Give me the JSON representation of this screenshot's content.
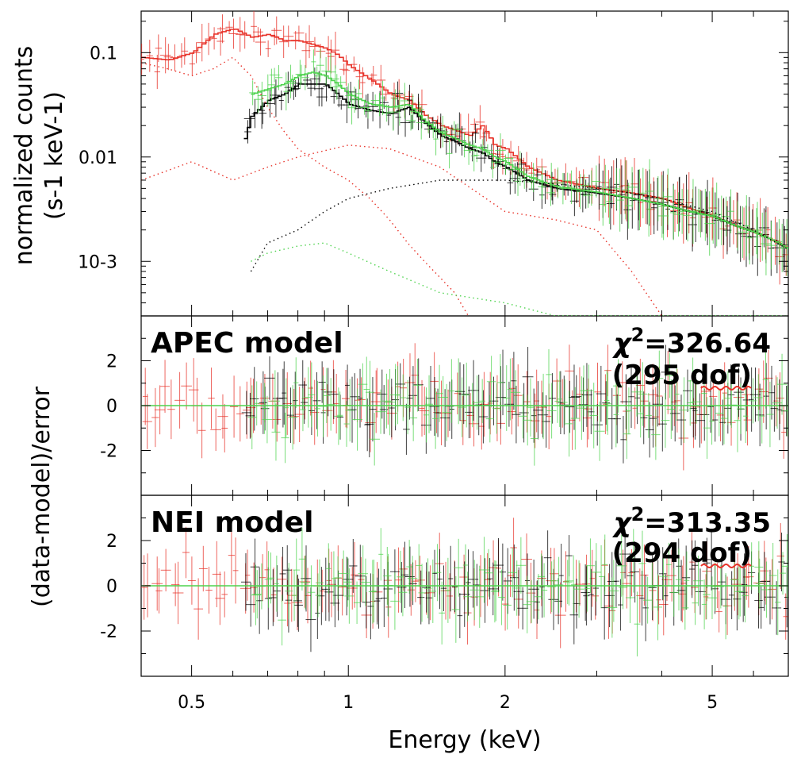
{
  "chart_data": [
    {
      "type": "line",
      "panel": "spectrum",
      "ylabel_line1": "normalized counts",
      "ylabel_line2": "(s-1 keV-1)",
      "xlabel": "",
      "xscale": "log",
      "yscale": "log",
      "xlim": [
        0.4,
        7.0
      ],
      "ylim": [
        0.0003,
        0.25
      ],
      "yticks": [
        {
          "value": 0.1,
          "label": "0.1"
        },
        {
          "value": 0.01,
          "label": "0.01"
        },
        {
          "value": 0.001,
          "label": "10-3"
        }
      ],
      "series": [
        {
          "color": "#e8332a",
          "role": "data+model",
          "x": [
            0.4,
            0.45,
            0.5,
            0.55,
            0.6,
            0.65,
            0.7,
            0.75,
            0.8,
            0.85,
            0.9,
            0.95,
            1.0,
            1.1,
            1.2,
            1.3,
            1.4,
            1.5,
            1.6,
            1.7,
            1.8,
            1.9,
            2.0,
            2.2,
            2.5,
            3.0,
            3.5,
            4.0,
            4.5,
            5.0,
            5.5,
            6.0,
            6.5,
            7.0
          ],
          "y": [
            0.09,
            0.085,
            0.1,
            0.15,
            0.17,
            0.14,
            0.15,
            0.13,
            0.13,
            0.12,
            0.11,
            0.095,
            0.075,
            0.055,
            0.04,
            0.035,
            0.025,
            0.02,
            0.018,
            0.016,
            0.02,
            0.013,
            0.012,
            0.008,
            0.006,
            0.005,
            0.0045,
            0.004,
            0.0032,
            0.0027,
            0.0022,
            0.0019,
            0.0016,
            0.0013
          ]
        },
        {
          "color": "#000000",
          "role": "data+model",
          "x": [
            0.63,
            0.65,
            0.7,
            0.75,
            0.8,
            0.85,
            0.9,
            0.95,
            1.0,
            1.1,
            1.2,
            1.3,
            1.4,
            1.5,
            1.6,
            1.7,
            1.8,
            1.9,
            2.0,
            2.2,
            2.5,
            3.0,
            3.5,
            4.0,
            4.5,
            5.0,
            5.5,
            6.0,
            6.5,
            7.0
          ],
          "y": [
            0.015,
            0.025,
            0.035,
            0.04,
            0.05,
            0.05,
            0.05,
            0.04,
            0.032,
            0.028,
            0.026,
            0.03,
            0.021,
            0.016,
            0.014,
            0.012,
            0.011,
            0.009,
            0.008,
            0.006,
            0.005,
            0.0045,
            0.004,
            0.0035,
            0.003,
            0.0027,
            0.0022,
            0.0019,
            0.0016,
            0.0013
          ]
        },
        {
          "color": "#4ed34e",
          "role": "data+model",
          "x": [
            0.65,
            0.7,
            0.75,
            0.8,
            0.85,
            0.9,
            0.95,
            1.0,
            1.1,
            1.2,
            1.3,
            1.4,
            1.5,
            1.6,
            1.7,
            1.8,
            1.9,
            2.0,
            2.2,
            2.5,
            3.0,
            3.5,
            4.0,
            4.5,
            5.0,
            5.5,
            6.0,
            6.5,
            7.0
          ],
          "y": [
            0.04,
            0.045,
            0.05,
            0.06,
            0.065,
            0.06,
            0.05,
            0.04,
            0.032,
            0.03,
            0.032,
            0.022,
            0.017,
            0.015,
            0.013,
            0.012,
            0.01,
            0.009,
            0.0065,
            0.0052,
            0.0046,
            0.004,
            0.0035,
            0.003,
            0.0027,
            0.0022,
            0.0019,
            0.0016,
            0.0013
          ]
        },
        {
          "color": "#e8332a",
          "role": "model-component",
          "x": [
            0.4,
            0.45,
            0.5,
            0.55,
            0.6,
            0.65,
            0.7,
            0.75,
            0.8,
            0.9,
            1.0,
            1.1,
            1.2,
            1.3,
            1.4,
            1.5,
            1.6,
            1.7
          ],
          "y": [
            0.08,
            0.07,
            0.06,
            0.07,
            0.09,
            0.06,
            0.03,
            0.018,
            0.012,
            0.008,
            0.006,
            0.004,
            0.0025,
            0.0015,
            0.001,
            0.0007,
            0.0005,
            0.0003
          ]
        },
        {
          "color": "#e8332a",
          "role": "model-component",
          "x": [
            0.4,
            0.5,
            0.6,
            0.7,
            0.8,
            1.0,
            1.2,
            1.5,
            2.0,
            2.5,
            3.0,
            3.5,
            4.0
          ],
          "y": [
            0.006,
            0.009,
            0.006,
            0.008,
            0.01,
            0.013,
            0.012,
            0.008,
            0.003,
            0.0025,
            0.002,
            0.0008,
            0.0003
          ]
        },
        {
          "color": "#000000",
          "role": "model-component",
          "x": [
            0.65,
            0.7,
            0.8,
            0.9,
            1.0,
            1.2,
            1.5,
            2.0,
            2.5,
            3.0,
            3.5,
            4.0,
            5.0,
            6.0,
            7.0
          ],
          "y": [
            0.0008,
            0.0015,
            0.002,
            0.003,
            0.004,
            0.005,
            0.006,
            0.006,
            0.0055,
            0.005,
            0.0045,
            0.004,
            0.003,
            0.002,
            0.0013
          ]
        },
        {
          "color": "#4ed34e",
          "role": "model-component",
          "x": [
            0.65,
            0.7,
            0.8,
            0.9,
            1.0,
            1.2,
            1.5,
            2.0,
            2.5,
            3.0,
            3.5,
            4.0,
            5.0,
            6.0,
            7.0
          ],
          "y": [
            0.001,
            0.0012,
            0.0014,
            0.0015,
            0.0012,
            0.0008,
            0.0005,
            0.0004,
            0.0003,
            0.0003,
            0.0003,
            0.0003,
            0.0003,
            0.0003,
            0.0003
          ]
        }
      ]
    },
    {
      "type": "scatter",
      "panel": "residuals-apec",
      "title": "APEC model",
      "chi2_symbol": "χ",
      "chi2_sup": "2",
      "chi2_value": "=326.64",
      "dof": "(295 dof)",
      "xscale": "log",
      "xlim": [
        0.4,
        7.0
      ],
      "ylim": [
        -4,
        4
      ],
      "yticks": [
        {
          "value": 2,
          "label": "2"
        },
        {
          "value": 0,
          "label": "0"
        },
        {
          "value": -2,
          "label": "-2"
        }
      ],
      "zero_line_color": "#4ed34e"
    },
    {
      "type": "scatter",
      "panel": "residuals-nei",
      "title": "NEI model",
      "chi2_symbol": "χ",
      "chi2_sup": "2",
      "chi2_value": "=313.35",
      "dof": "(294 dof)",
      "xlabel": "Energy (keV)",
      "xscale": "log",
      "xlim": [
        0.4,
        7.0
      ],
      "ylim": [
        -4,
        4
      ],
      "xticks": [
        {
          "value": 0.5,
          "label": "0.5"
        },
        {
          "value": 1,
          "label": "1"
        },
        {
          "value": 2,
          "label": "2"
        },
        {
          "value": 5,
          "label": "5"
        }
      ],
      "yticks": [
        {
          "value": 2,
          "label": "2"
        },
        {
          "value": 0,
          "label": "0"
        },
        {
          "value": -2,
          "label": "-2"
        }
      ],
      "zero_line_color": "#4ed34e"
    }
  ],
  "residual_ylabel": "(data-model)/error",
  "colors": {
    "red": "#e8332a",
    "black": "#000000",
    "green": "#4ed34e",
    "squiggle": "#e8332a"
  }
}
